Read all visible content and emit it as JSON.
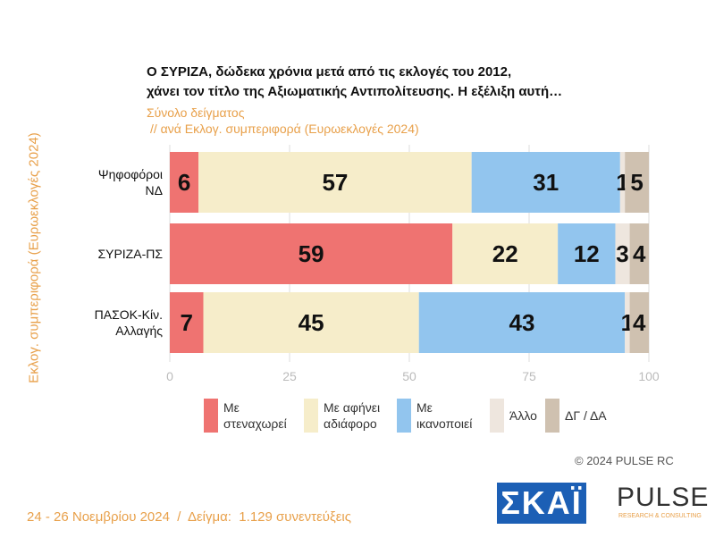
{
  "chart_data": {
    "type": "stacked_barh",
    "title": [
      "Ο ΣΥΡΙΖΑ, δώδεκα χρόνια μετά από τις εκλογές του 2012,",
      "χάνει τον τίτλο της Αξιωματικής Αντιπολίτευσης. Η εξέλιξη αυτή…"
    ],
    "subtitle": [
      "Σύνολο δείγματος",
      "// ανά Εκλογ. συμπεριφορά (Ευρωεκλογές 2024)"
    ],
    "ylabel": "Εκλογ. συμπεριφορά (Ευρωεκλογές 2024)",
    "categories": [
      "Ψηφοφόροι ΝΔ",
      "ΣΥΡΙΖΑ-ΠΣ",
      "ΠΑΣΟΚ-Κίν. Αλλαγής"
    ],
    "series": [
      {
        "name": "Με στεναχωρεί",
        "color": "#ef7371",
        "values": [
          6,
          59,
          7
        ]
      },
      {
        "name": "Με αφήνει αδιάφορο",
        "color": "#f6edca",
        "values": [
          57,
          22,
          45
        ]
      },
      {
        "name": "Με ικανοποιεί",
        "color": "#92c5ee",
        "values": [
          31,
          12,
          43
        ]
      },
      {
        "name": "Άλλο",
        "color": "#eee6de",
        "values": [
          1,
          3,
          1
        ]
      },
      {
        "name": "ΔΓ / ΔΑ",
        "color": "#cfc1b0",
        "values": [
          5,
          4,
          4
        ]
      }
    ],
    "xlim": [
      0,
      100
    ],
    "xticks": [
      0,
      25,
      50,
      75,
      100
    ],
    "grid": true,
    "copyright": "©  2024  PULSE RC",
    "footer": "24 - 26 Νοεμβρίου 2024  /  Δείγμα:  1.129 συνεντεύξεις",
    "logos": {
      "skai": "ΣΚΑΪ",
      "pulse": "PULSE",
      "pulse_tagline": "RESEARCH & CONSULTING"
    }
  }
}
